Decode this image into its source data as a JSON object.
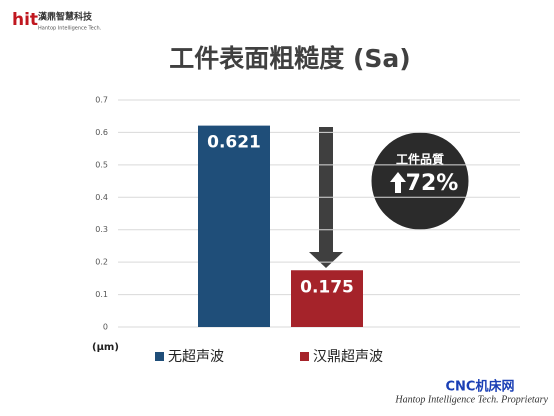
{
  "chart_data": {
    "type": "bar",
    "logo": "hit",
    "company": "漢鼎智慧科技",
    "company_en": "Hantop Intelligence Tech.",
    "title": "工件表面粗糙度 (Sa)",
    "y_unit": "(μm)",
    "series": [
      {
        "name": "无超声波",
        "color": "#1f4e79",
        "values": [
          0.621
        ]
      },
      {
        "name": "汉鼎超声波",
        "color": "#a5232a",
        "values": [
          0.175
        ]
      }
    ],
    "ylim": [
      0,
      0.7
    ],
    "yticks": [
      0,
      0.1,
      0.2,
      0.3,
      0.4,
      0.5,
      0.6,
      0.7
    ],
    "grid": true,
    "annotation": {
      "label": "工件品質",
      "value": "72%"
    },
    "watermark": "CNC机床网",
    "footer": "Hantop Intelligence Tech. Proprietary"
  }
}
